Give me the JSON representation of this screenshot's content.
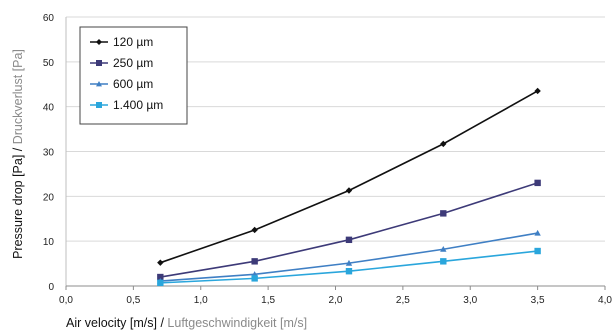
{
  "chart_data": {
    "type": "line",
    "x": [
      0.7,
      1.4,
      2.1,
      2.8,
      3.5
    ],
    "series": [
      {
        "name": "120 µm",
        "values": [
          5.2,
          12.5,
          21.3,
          31.7,
          43.5
        ],
        "color": "#111111",
        "marker": "diamond"
      },
      {
        "name": "250 µm",
        "values": [
          2.0,
          5.5,
          10.3,
          16.2,
          23.0
        ],
        "color": "#3d3a78",
        "marker": "square"
      },
      {
        "name": "600 µm",
        "values": [
          1.1,
          2.6,
          5.1,
          8.2,
          11.8
        ],
        "color": "#3f7fc4",
        "marker": "triangle"
      },
      {
        "name": "1.400 µm",
        "values": [
          0.7,
          1.7,
          3.3,
          5.5,
          7.8
        ],
        "color": "#2aa6dc",
        "marker": "square"
      }
    ],
    "xlim": [
      0,
      4
    ],
    "ylim": [
      0,
      60
    ],
    "xticks": [
      "0,0",
      "0,5",
      "1,0",
      "1,5",
      "2,0",
      "2,5",
      "3,0",
      "3,5",
      "4,0"
    ],
    "yticks": [
      "0",
      "10",
      "20",
      "30",
      "40",
      "50",
      "60"
    ],
    "xlabel": {
      "main": "Air velocity [m/s]",
      "separator": " / ",
      "secondary": "Luftgeschwindigkeit [m/s]"
    },
    "ylabel": {
      "main": "Pressure drop [Pa]",
      "separator": " / ",
      "secondary": "Druckverlust [Pa]"
    },
    "grid": true,
    "legend_position": "top-left"
  }
}
